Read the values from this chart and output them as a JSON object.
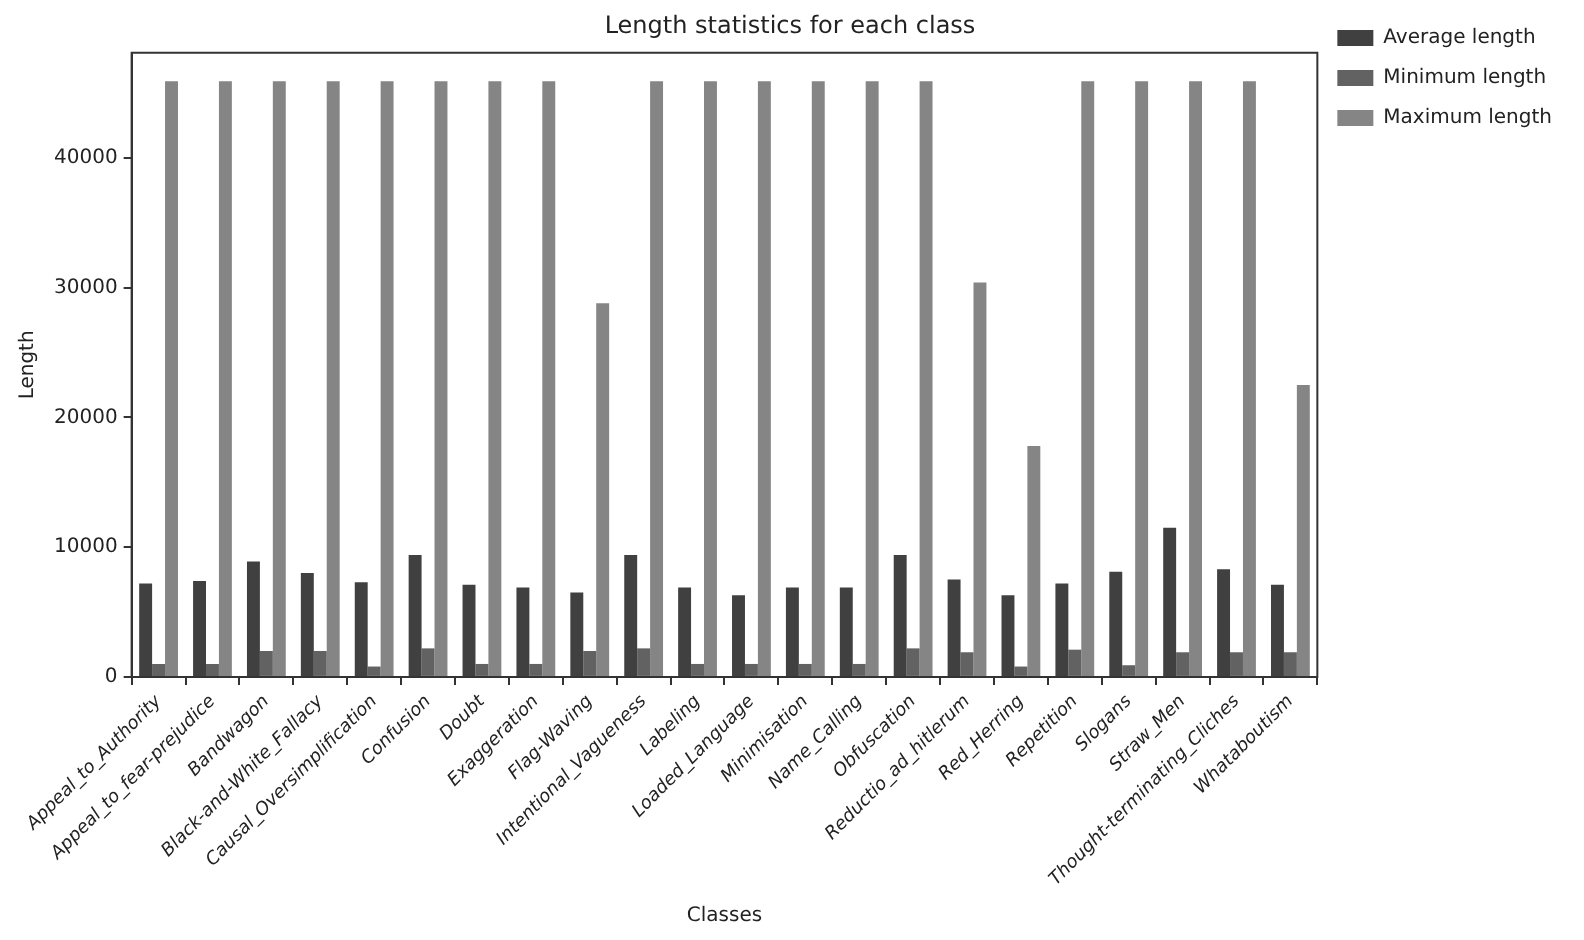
{
  "chart_data": {
    "type": "bar",
    "title": "Length statistics for each class",
    "xlabel": "Classes",
    "ylabel": "Length",
    "categories": [
      "Appeal_to_Authority",
      "Appeal_to_fear-prejudice",
      "Bandwagon",
      "Black-and-White_Fallacy",
      "Causal_Oversimplification",
      "Confusion",
      "Doubt",
      "Exaggeration",
      "Flag-Waving",
      "Intentional_Vagueness",
      "Labeling",
      "Loaded_Language",
      "Minimisation",
      "Name_Calling",
      "Obfuscation",
      "Reductio_ad_hitlerum",
      "Red_Herring",
      "Repetition",
      "Slogans",
      "Straw_Men",
      "Thought-terminating_Cliches",
      "Whataboutism"
    ],
    "series": [
      {
        "name": "Average length",
        "color": "#404040",
        "values": [
          7200,
          7400,
          8900,
          8000,
          7300,
          9400,
          7100,
          6900,
          6500,
          9400,
          6900,
          6300,
          6900,
          6900,
          9400,
          7500,
          6300,
          7200,
          8100,
          11500,
          8300,
          7100
        ]
      },
      {
        "name": "Minimum length",
        "color": "#626262",
        "values": [
          1000,
          1000,
          2000,
          2000,
          800,
          2200,
          1000,
          1000,
          2000,
          2200,
          1000,
          1000,
          1000,
          1000,
          2200,
          1900,
          800,
          2100,
          900,
          1900,
          1900,
          1900
        ]
      },
      {
        "name": "Maximum length",
        "color": "#858585",
        "values": [
          45900,
          45900,
          45900,
          45900,
          45900,
          45900,
          45900,
          45900,
          28800,
          45900,
          45900,
          45900,
          45900,
          45900,
          45900,
          30400,
          17800,
          45900,
          45900,
          45900,
          45900,
          22500
        ]
      }
    ],
    "ylim": [
      0,
      48100
    ],
    "yticks": [
      0,
      10000,
      20000,
      30000,
      40000
    ],
    "grid": false,
    "legend": "top right"
  }
}
